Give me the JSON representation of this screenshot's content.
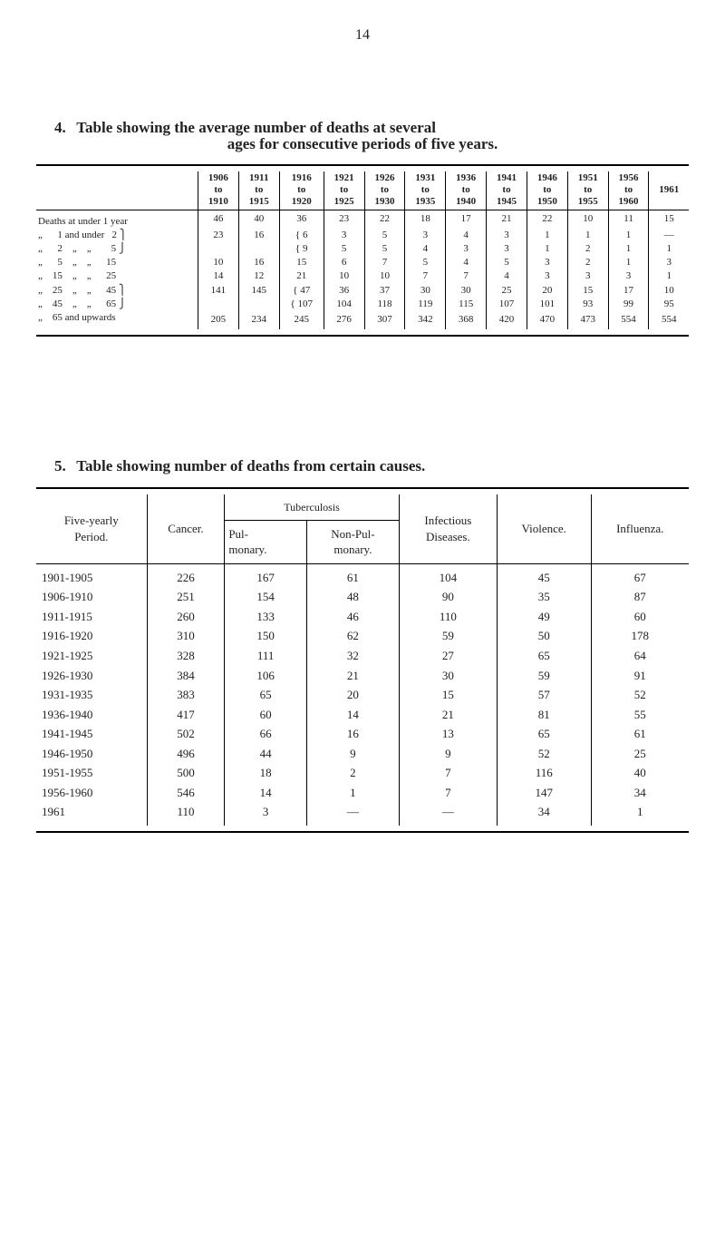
{
  "pageNumber": "14",
  "section4": {
    "number": "4.",
    "titleA": "Table showing the average number of deaths at several",
    "titleB": "ages for consecutive periods of five years.",
    "periods": [
      "1906\nto\n1910",
      "1911\nto\n1915",
      "1916\nto\n1920",
      "1921\nto\n1925",
      "1926\nto\n1930",
      "1931\nto\n1935",
      "1936\nto\n1940",
      "1941\nto\n1945",
      "1946\nto\n1950",
      "1951\nto\n1955",
      "1956\nto\n1960",
      "1961"
    ],
    "rows": [
      {
        "label": "Deaths at under 1 year",
        "v": [
          "46",
          "40",
          "36",
          "23",
          "22",
          "18",
          "17",
          "21",
          "22",
          "10",
          "11",
          "15"
        ]
      },
      {
        "label": "„      1 and under   2 ⎫",
        "v": [
          "23",
          "16",
          "{   6",
          "3",
          "5",
          "3",
          "4",
          "3",
          "1",
          "1",
          "1",
          "—"
        ]
      },
      {
        "label": "„      2    „    „        5 ⎭",
        "v": [
          "",
          "",
          "{   9",
          "5",
          "5",
          "4",
          "3",
          "3",
          "1",
          "2",
          "1",
          "1"
        ]
      },
      {
        "label": "„      5    „    „      15",
        "v": [
          "10",
          "16",
          "15",
          "6",
          "7",
          "5",
          "4",
          "5",
          "3",
          "2",
          "1",
          "3"
        ]
      },
      {
        "label": "„    15    „    „      25",
        "v": [
          "14",
          "12",
          "21",
          "10",
          "10",
          "7",
          "7",
          "4",
          "3",
          "3",
          "3",
          "1"
        ]
      },
      {
        "label": "„    25    „    „      45 ⎫",
        "v": [
          "141",
          "145",
          "{  47",
          "36",
          "37",
          "30",
          "30",
          "25",
          "20",
          "15",
          "17",
          "10"
        ]
      },
      {
        "label": "„    45    „    „      65 ⎭",
        "v": [
          "",
          "",
          "{ 107",
          "104",
          "118",
          "119",
          "115",
          "107",
          "101",
          "93",
          "99",
          "95"
        ]
      },
      {
        "label": "„    65 and upwards",
        "v": [
          "205",
          "234",
          "245",
          "276",
          "307",
          "342",
          "368",
          "420",
          "470",
          "473",
          "554",
          "554"
        ]
      }
    ]
  },
  "section5": {
    "number": "5.",
    "title": "Table showing number of deaths from certain causes.",
    "headers": {
      "period": "Five-yearly\nPeriod.",
      "cancer": "Cancer.",
      "tub": "Tuberculosis",
      "pul": "Pul-\nmonary.",
      "nonpul": "Non-Pul-\nmonary.",
      "inf": "Infectious\nDiseases.",
      "vio": "Violence.",
      "flu": "Influenza."
    },
    "rows": [
      [
        "1901-1905",
        "226",
        "167",
        "61",
        "104",
        "45",
        "67"
      ],
      [
        "1906-1910",
        "251",
        "154",
        "48",
        "90",
        "35",
        "87"
      ],
      [
        "1911-1915",
        "260",
        "133",
        "46",
        "110",
        "49",
        "60"
      ],
      [
        "1916-1920",
        "310",
        "150",
        "62",
        "59",
        "50",
        "178"
      ],
      [
        "1921-1925",
        "328",
        "111",
        "32",
        "27",
        "65",
        "64"
      ],
      [
        "1926-1930",
        "384",
        "106",
        "21",
        "30",
        "59",
        "91"
      ],
      [
        "1931-1935",
        "383",
        "65",
        "20",
        "15",
        "57",
        "52"
      ],
      [
        "1936-1940",
        "417",
        "60",
        "14",
        "21",
        "81",
        "55"
      ],
      [
        "1941-1945",
        "502",
        "66",
        "16",
        "13",
        "65",
        "61"
      ],
      [
        "1946-1950",
        "496",
        "44",
        "9",
        "9",
        "52",
        "25"
      ],
      [
        "1951-1955",
        "500",
        "18",
        "2",
        "7",
        "116",
        "40"
      ],
      [
        "1956-1960",
        "546",
        "14",
        "1",
        "7",
        "147",
        "34"
      ],
      [
        "1961",
        "110",
        "3",
        "—",
        "—",
        "34",
        "1"
      ]
    ]
  }
}
